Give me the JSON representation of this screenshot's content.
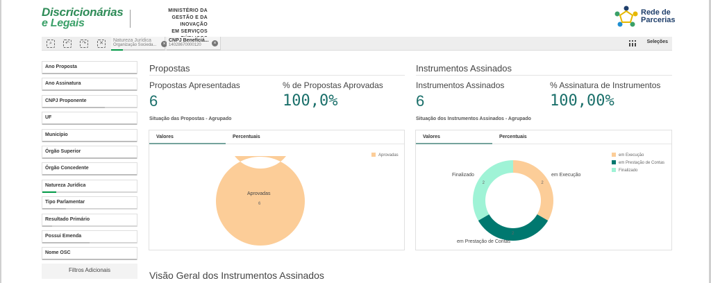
{
  "header": {
    "logo_line1": "Discricionárias",
    "logo_line2": "e Legais",
    "ministry_line1": "MINISTÉRIO DA",
    "ministry_line2": "GESTÃO E DA INOVAÇÃO",
    "ministry_line3": "EM SERVIÇOS PÚBLICOS",
    "partner_line1": "Rede de",
    "partner_line2": "Parcerias"
  },
  "toolbar": {
    "chips": [
      {
        "title": "Natureza Jurídica",
        "value": "Organização Socieda..."
      },
      {
        "title": "CNPJ Benefíciá...",
        "value": "14028670000120"
      }
    ],
    "selections_label": "Seleções"
  },
  "sidebar": {
    "filters": [
      {
        "label": "Ano Proposta"
      },
      {
        "label": "Ano Assinatura"
      },
      {
        "label": "CNPJ Proponente"
      },
      {
        "label": "UF"
      },
      {
        "label": "Município"
      },
      {
        "label": "Órgão Superior"
      },
      {
        "label": "Órgão Concedente"
      },
      {
        "label": "Natureza Jurídica"
      },
      {
        "label": "Tipo Parlamentar"
      },
      {
        "label": "Resultado Primário"
      },
      {
        "label": "Possui Emenda"
      },
      {
        "label": "Nome OSC"
      }
    ],
    "extra_filters_label": "Filtros Adicionais"
  },
  "propostas": {
    "title": "Propostas",
    "kpi1_label": "Propostas Apresentadas",
    "kpi1_value": "6",
    "kpi2_label": "% de Propostas Aprovadas",
    "kpi2_value": "100,0%",
    "chart_title": "Situação das Propostas - Agrupado",
    "tab_values": "Valores",
    "tab_percent": "Percentuais",
    "legend": "Aprovadas",
    "center_label": "Aprovadas",
    "center_value": "6"
  },
  "instrumentos": {
    "title": "Instrumentos Assinados",
    "kpi1_label": "Instrumentos Assinados",
    "kpi1_value": "6",
    "kpi2_label": "% Assinatura de Instrumentos",
    "kpi2_value": "100,00%",
    "chart_title": "Situação dos Instrumentos Assinados - Agrupado",
    "tab_values": "Valores",
    "tab_percent": "Percentuais",
    "legend": [
      "em Execução",
      "em Prestação de Contas",
      "Finalizado"
    ],
    "label_finalizado": "Finalizado",
    "label_execucao": "em Execução",
    "label_prestacao": "em Prestação de Contas"
  },
  "bottom": {
    "title": "Visão Geral dos Instrumentos Assinados"
  },
  "colors": {
    "aprovadas": "#fccd98",
    "execucao": "#fccd98",
    "prestacao": "#00786f",
    "finalizado": "#9ff3d6"
  },
  "chart_data": [
    {
      "type": "pie",
      "title": "Situação das Propostas - Agrupado",
      "categories": [
        "Aprovadas"
      ],
      "values": [
        6
      ]
    },
    {
      "type": "pie",
      "title": "Situação dos Instrumentos Assinados - Agrupado",
      "categories": [
        "em Execução",
        "em Prestação de Contas",
        "Finalizado"
      ],
      "values": [
        2,
        2,
        2
      ]
    }
  ]
}
